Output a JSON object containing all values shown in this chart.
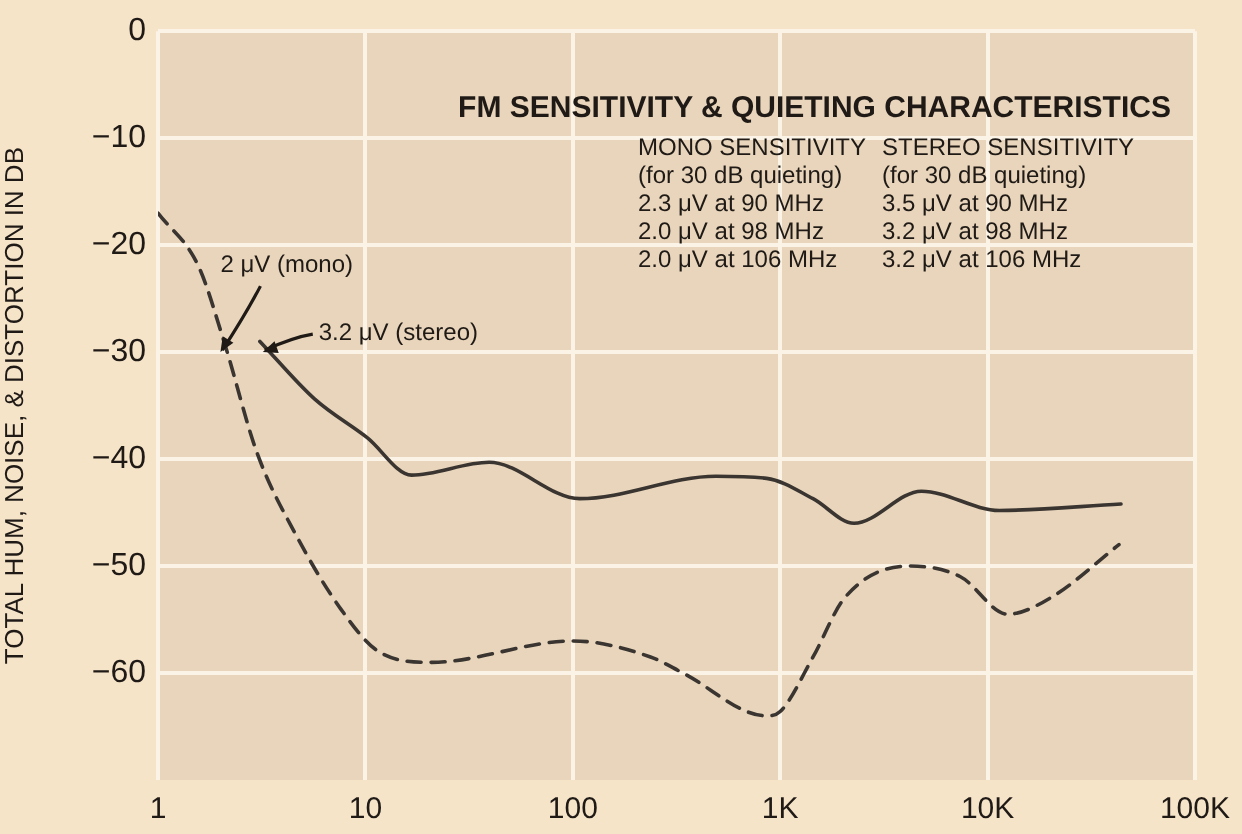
{
  "chart_data": {
    "type": "line",
    "title": "FM SENSITIVITY & QUIETING CHARACTERISTICS",
    "ylabel": "TOTAL HUM, NOISE, & DISTORTION IN DB",
    "log": "x",
    "grid": true,
    "legend": false,
    "marker": "none",
    "xlim": [
      1,
      100000
    ],
    "xticks": [
      1,
      10,
      100,
      {
        "value": 1000,
        "label": "1K"
      },
      {
        "value": 10000,
        "label": "10K"
      },
      {
        "value": 100000,
        "label": "100K"
      }
    ],
    "ylim": [
      -70,
      0
    ],
    "yticks": [
      0,
      -10,
      -20,
      -30,
      -40,
      -50,
      -60
    ],
    "series": [
      {
        "color": "#3a3530",
        "line_style": "solid",
        "x": [
          3.1,
          5.7,
          10.2,
          16.7,
          39.5,
          108,
          490,
          860,
          1440,
          2270,
          4800,
          11400,
          44000
        ],
        "values": [
          -29,
          -34.4,
          -38,
          -41.5,
          -40.3,
          -43.7,
          -41.6,
          -41.8,
          -43.7,
          -46,
          -43,
          -44.8,
          -44.2
        ]
      },
      {
        "color": "#3a3530",
        "line_style": "dashed",
        "x": [
          1,
          1.57,
          2.08,
          3,
          4.6,
          7.6,
          11.6,
          20.8,
          100,
          237,
          340,
          860,
          1000,
          1440,
          2040,
          4200,
          7400,
          12500,
          20000,
          43000
        ],
        "values": [
          -17,
          -22,
          -29,
          -39.4,
          -47,
          -54,
          -58,
          -59,
          -57,
          -58.5,
          -60,
          -64,
          -63.6,
          -58.5,
          -53,
          -50,
          -51,
          -54.5,
          -53,
          -48
        ]
      }
    ],
    "annotations": [
      "MONO SENSITIVITY\n(for 30 dB quieting)\n2.3 μV at 90 MHz\n2.0 μV at 98 MHz\n2.0 μV at 106 MHz",
      "STEREO SENSITIVITY\n(for 30 dB quieting)\n3.5 μV at 90 MHz\n3.2 μV at 98 MHz\n3.2 μV at 106 MHz",
      {
        "text": "2 μV (mono)",
        "x": 2,
        "y": -30
      },
      {
        "text": "3.2 μV (stereo)",
        "x": 3.2,
        "y": -30
      }
    ]
  }
}
